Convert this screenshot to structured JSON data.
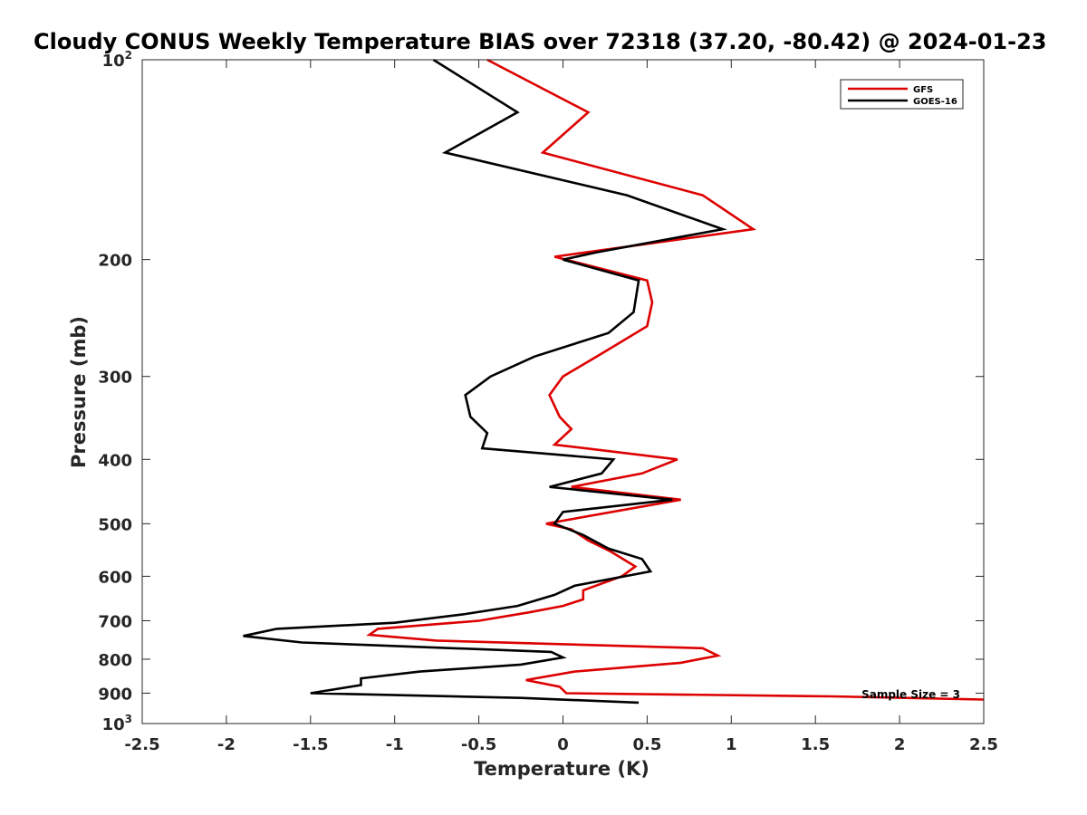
{
  "chart_data": {
    "type": "line",
    "title": "Cloudy CONUS Weekly Temperature BIAS over 72318 (37.20, -80.42) @ 2024-01-23",
    "xlabel": "Temperature (K)",
    "ylabel": "Pressure (mb)",
    "xlim": [
      -2.5,
      2.5
    ],
    "ylim": [
      100,
      1000
    ],
    "yscale": "log",
    "y_reversed": true,
    "grid": false,
    "legend_position": "top-right",
    "xticks": [
      -2.5,
      -2,
      -1.5,
      -1,
      -0.5,
      0,
      0.5,
      1,
      1.5,
      2,
      2.5
    ],
    "xtick_labels": [
      "-2.5",
      "-2",
      "-1.5",
      "-1",
      "-0.5",
      "0",
      "0.5",
      "1",
      "1.5",
      "2",
      "2.5"
    ],
    "yticks": [
      {
        "value": 100,
        "label": "10",
        "sup": "2"
      },
      {
        "value": 200,
        "label": "200",
        "sup": ""
      },
      {
        "value": 300,
        "label": "300",
        "sup": ""
      },
      {
        "value": 400,
        "label": "400",
        "sup": ""
      },
      {
        "value": 500,
        "label": "500",
        "sup": ""
      },
      {
        "value": 600,
        "label": "600",
        "sup": ""
      },
      {
        "value": 700,
        "label": "700",
        "sup": ""
      },
      {
        "value": 800,
        "label": "800",
        "sup": ""
      },
      {
        "value": 900,
        "label": "900",
        "sup": ""
      },
      {
        "value": 1000,
        "label": "10",
        "sup": "3"
      }
    ],
    "series": [
      {
        "name": "GFS",
        "color": "#dd0000",
        "points": [
          {
            "x": -0.45,
            "y": 100
          },
          {
            "x": 0.15,
            "y": 120
          },
          {
            "x": -0.12,
            "y": 138
          },
          {
            "x": 0.83,
            "y": 160
          },
          {
            "x": 1.13,
            "y": 180
          },
          {
            "x": -0.05,
            "y": 198
          },
          {
            "x": 0.5,
            "y": 215
          },
          {
            "x": 0.53,
            "y": 232
          },
          {
            "x": 0.5,
            "y": 252
          },
          {
            "x": 0.2,
            "y": 280
          },
          {
            "x": 0.0,
            "y": 300
          },
          {
            "x": -0.08,
            "y": 320
          },
          {
            "x": -0.02,
            "y": 345
          },
          {
            "x": 0.05,
            "y": 360
          },
          {
            "x": -0.05,
            "y": 380
          },
          {
            "x": 0.68,
            "y": 400
          },
          {
            "x": 0.47,
            "y": 420
          },
          {
            "x": 0.05,
            "y": 440
          },
          {
            "x": 0.7,
            "y": 460
          },
          {
            "x": -0.1,
            "y": 500
          },
          {
            "x": 0.05,
            "y": 510
          },
          {
            "x": 0.15,
            "y": 530
          },
          {
            "x": 0.28,
            "y": 550
          },
          {
            "x": 0.43,
            "y": 580
          },
          {
            "x": 0.35,
            "y": 600
          },
          {
            "x": 0.12,
            "y": 630
          },
          {
            "x": 0.12,
            "y": 650
          },
          {
            "x": 0.0,
            "y": 665
          },
          {
            "x": -0.2,
            "y": 680
          },
          {
            "x": -0.5,
            "y": 700
          },
          {
            "x": -1.1,
            "y": 720
          },
          {
            "x": -1.15,
            "y": 735
          },
          {
            "x": -0.75,
            "y": 750
          },
          {
            "x": 0.83,
            "y": 770
          },
          {
            "x": 0.92,
            "y": 790
          },
          {
            "x": 0.7,
            "y": 810
          },
          {
            "x": 0.07,
            "y": 835
          },
          {
            "x": -0.22,
            "y": 860
          },
          {
            "x": -0.02,
            "y": 880
          },
          {
            "x": 0.02,
            "y": 900
          },
          {
            "x": 1.6,
            "y": 910
          },
          {
            "x": 2.5,
            "y": 920
          }
        ]
      },
      {
        "name": "GOES-16",
        "color": "#000000",
        "points": [
          {
            "x": -0.77,
            "y": 100
          },
          {
            "x": -0.27,
            "y": 120
          },
          {
            "x": -0.7,
            "y": 138
          },
          {
            "x": 0.38,
            "y": 160
          },
          {
            "x": 0.95,
            "y": 180
          },
          {
            "x": 0.2,
            "y": 195
          },
          {
            "x": 0.0,
            "y": 200
          },
          {
            "x": 0.45,
            "y": 215
          },
          {
            "x": 0.42,
            "y": 240
          },
          {
            "x": 0.27,
            "y": 258
          },
          {
            "x": -0.17,
            "y": 280
          },
          {
            "x": -0.43,
            "y": 300
          },
          {
            "x": -0.58,
            "y": 320
          },
          {
            "x": -0.55,
            "y": 345
          },
          {
            "x": -0.45,
            "y": 365
          },
          {
            "x": -0.48,
            "y": 385
          },
          {
            "x": 0.3,
            "y": 400
          },
          {
            "x": 0.23,
            "y": 420
          },
          {
            "x": -0.08,
            "y": 440
          },
          {
            "x": 0.65,
            "y": 460
          },
          {
            "x": 0.0,
            "y": 480
          },
          {
            "x": -0.05,
            "y": 500
          },
          {
            "x": 0.12,
            "y": 520
          },
          {
            "x": 0.27,
            "y": 545
          },
          {
            "x": 0.47,
            "y": 565
          },
          {
            "x": 0.52,
            "y": 590
          },
          {
            "x": 0.07,
            "y": 620
          },
          {
            "x": -0.05,
            "y": 640
          },
          {
            "x": -0.27,
            "y": 665
          },
          {
            "x": -0.6,
            "y": 685
          },
          {
            "x": -1.0,
            "y": 705
          },
          {
            "x": -1.7,
            "y": 720
          },
          {
            "x": -1.9,
            "y": 738
          },
          {
            "x": -1.55,
            "y": 755
          },
          {
            "x": -0.07,
            "y": 780
          },
          {
            "x": 0.0,
            "y": 795
          },
          {
            "x": -0.25,
            "y": 815
          },
          {
            "x": -0.85,
            "y": 835
          },
          {
            "x": -1.2,
            "y": 855
          },
          {
            "x": -1.2,
            "y": 875
          },
          {
            "x": -1.5,
            "y": 900
          },
          {
            "x": -0.25,
            "y": 915
          },
          {
            "x": 0.45,
            "y": 930
          }
        ]
      }
    ],
    "annotation": "Sample Size = 3"
  }
}
